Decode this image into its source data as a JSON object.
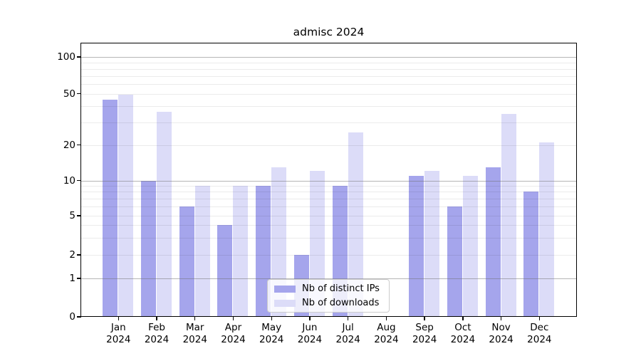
{
  "title": "admisc 2024",
  "chart_data": {
    "type": "bar",
    "categories": [
      "Jan 2024",
      "Feb 2024",
      "Mar 2024",
      "Apr 2024",
      "May 2024",
      "Jun 2024",
      "Jul 2024",
      "Aug 2024",
      "Sep 2024",
      "Oct 2024",
      "Nov 2024",
      "Dec 2024"
    ],
    "series": [
      {
        "name": "Nb of distinct IPs",
        "color": "#a5a5ec",
        "values": [
          45,
          10,
          6,
          4,
          9,
          2,
          9,
          0,
          11,
          6,
          13,
          8
        ]
      },
      {
        "name": "Nb of downloads",
        "color": "#dcdcf8",
        "values": [
          49,
          36,
          9,
          9,
          13,
          12,
          25,
          0,
          12,
          11,
          35,
          21
        ]
      }
    ],
    "xlabel": "",
    "ylabel": "",
    "yticks": [
      0,
      1,
      2,
      5,
      10,
      20,
      50,
      100
    ],
    "ylim": [
      0,
      130
    ],
    "scale": "log",
    "grid": true,
    "legend_position": "lower center"
  }
}
